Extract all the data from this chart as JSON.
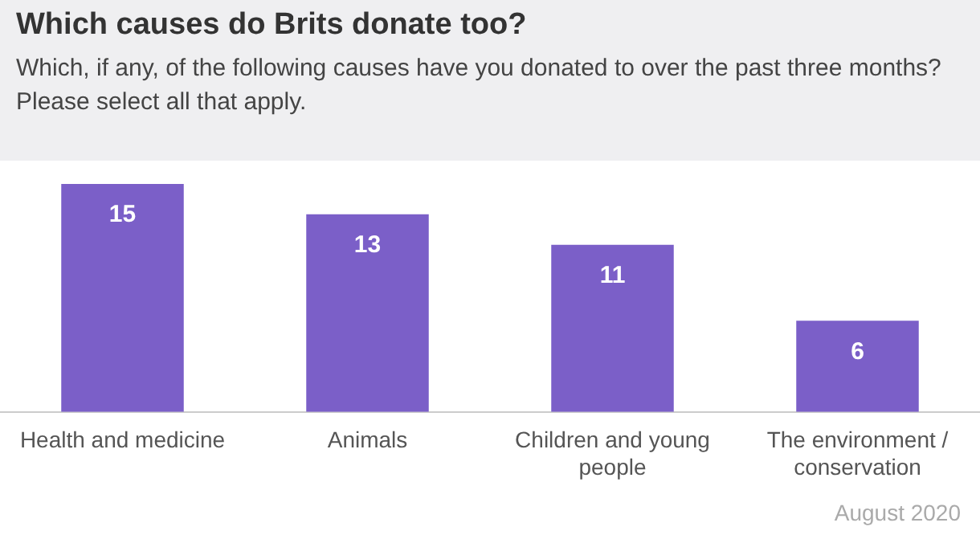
{
  "chart_data": {
    "type": "bar",
    "title": "Which causes do Brits donate too?",
    "subtitle": "Which, if any, of the following causes have you donated to over the past three months? Please select all that apply.",
    "categories": [
      "Health and medicine",
      "Animals",
      "Children and young people",
      "The environment / conservation"
    ],
    "values": [
      15,
      13,
      11,
      6
    ],
    "color": "#7b5fc8",
    "data_labels": true,
    "grid": false,
    "legend": false,
    "annotations": [
      "August 2020"
    ]
  }
}
